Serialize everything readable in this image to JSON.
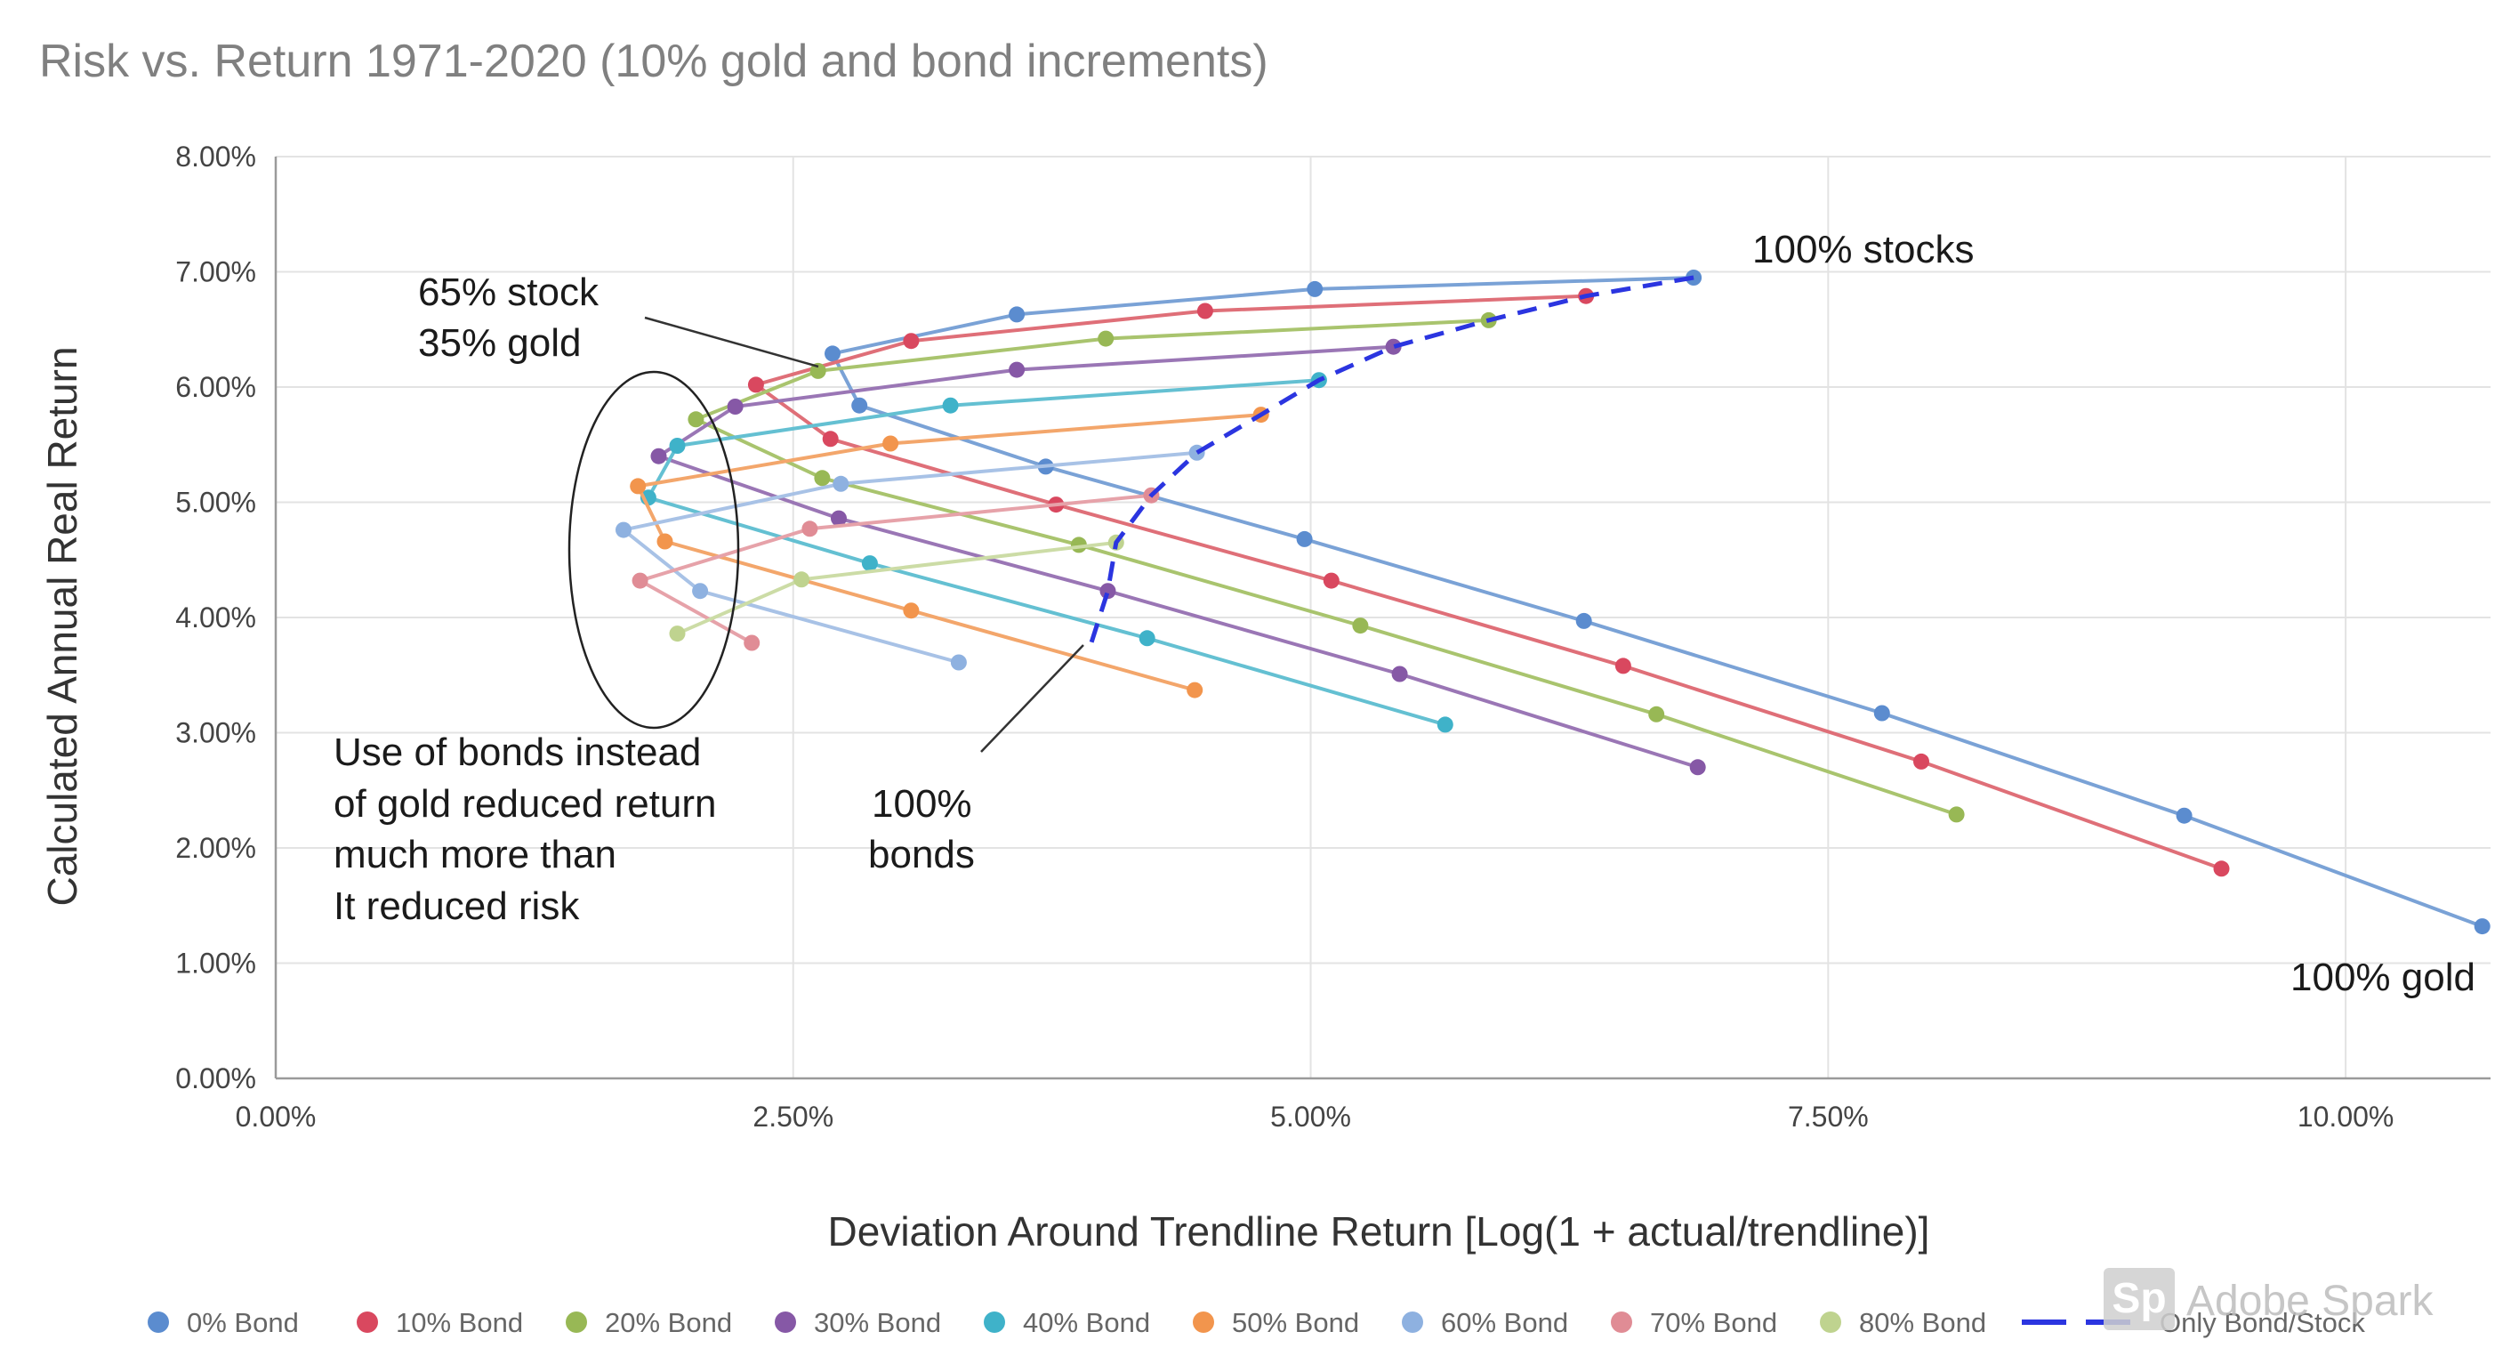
{
  "chart_data": {
    "type": "line",
    "title": "Risk vs. Return 1971-2020 (10% gold and bond increments)",
    "xlabel": "Deviation Around Trendline Return [Log(1 + actual/trendline)]",
    "ylabel": "Calculated Annual Real Return",
    "xlim": [
      0,
      10.7
    ],
    "ylim": [
      0,
      8
    ],
    "x_ticks": [
      "0.00%",
      "2.50%",
      "5.00%",
      "7.50%",
      "10.00%"
    ],
    "y_ticks": [
      "0.00%",
      "1.00%",
      "2.00%",
      "3.00%",
      "4.00%",
      "5.00%",
      "6.00%",
      "7.00%",
      "8.00%"
    ],
    "grid": true,
    "legend_position": "bottom",
    "series": [
      {
        "name": "0% Bond",
        "color": "#5b8ccf",
        "stroke": "#7aa2d6",
        "points": [
          [
            6.85,
            6.95
          ],
          [
            5.02,
            6.85
          ],
          [
            3.58,
            6.63
          ],
          [
            2.69,
            6.29
          ],
          [
            2.82,
            5.84
          ],
          [
            3.72,
            5.31
          ],
          [
            4.97,
            4.68
          ],
          [
            6.32,
            3.97
          ],
          [
            7.76,
            3.17
          ],
          [
            9.22,
            2.28
          ],
          [
            10.66,
            1.32
          ]
        ]
      },
      {
        "name": "10% Bond",
        "color": "#d9485f",
        "stroke": "#df6f78",
        "points": [
          [
            6.33,
            6.79
          ],
          [
            4.49,
            6.66
          ],
          [
            3.07,
            6.4
          ],
          [
            2.32,
            6.02
          ],
          [
            2.68,
            5.55
          ],
          [
            3.77,
            4.98
          ],
          [
            5.1,
            4.32
          ],
          [
            6.51,
            3.58
          ],
          [
            7.95,
            2.75
          ],
          [
            9.4,
            1.82
          ]
        ]
      },
      {
        "name": "20% Bond",
        "color": "#98b855",
        "stroke": "#a9c46e",
        "points": [
          [
            5.86,
            6.58
          ],
          [
            4.01,
            6.42
          ],
          [
            2.62,
            6.14
          ],
          [
            2.03,
            5.72
          ],
          [
            2.64,
            5.21
          ],
          [
            3.88,
            4.63
          ],
          [
            5.24,
            3.93
          ],
          [
            6.67,
            3.16
          ],
          [
            8.12,
            2.29
          ]
        ]
      },
      {
        "name": "30% Bond",
        "color": "#8658a6",
        "stroke": "#9a76b5",
        "points": [
          [
            5.4,
            6.35
          ],
          [
            3.58,
            6.15
          ],
          [
            2.22,
            5.83
          ],
          [
            1.85,
            5.4
          ],
          [
            2.72,
            4.86
          ],
          [
            4.02,
            4.23
          ],
          [
            5.43,
            3.51
          ],
          [
            6.87,
            2.7
          ]
        ]
      },
      {
        "name": "40% Bond",
        "color": "#3fb2c9",
        "stroke": "#64c0d2",
        "points": [
          [
            5.04,
            6.06
          ],
          [
            3.26,
            5.84
          ],
          [
            1.94,
            5.49
          ],
          [
            1.8,
            5.04
          ],
          [
            2.87,
            4.47
          ],
          [
            4.21,
            3.82
          ],
          [
            5.65,
            3.07
          ]
        ]
      },
      {
        "name": "50% Bond",
        "color": "#f2954d",
        "stroke": "#f3a66b",
        "points": [
          [
            4.76,
            5.76
          ],
          [
            2.97,
            5.51
          ],
          [
            1.75,
            5.14
          ],
          [
            1.88,
            4.66
          ],
          [
            3.07,
            4.06
          ],
          [
            4.44,
            3.37
          ]
        ]
      },
      {
        "name": "60% Bond",
        "color": "#8eb1e0",
        "stroke": "#a8c2e6",
        "points": [
          [
            4.45,
            5.43
          ],
          [
            2.73,
            5.16
          ],
          [
            1.68,
            4.76
          ],
          [
            2.05,
            4.23
          ],
          [
            3.3,
            3.61
          ]
        ]
      },
      {
        "name": "70% Bond",
        "color": "#e08c95",
        "stroke": "#e6a2a9",
        "points": [
          [
            4.23,
            5.06
          ],
          [
            2.58,
            4.77
          ],
          [
            1.76,
            4.32
          ],
          [
            2.3,
            3.78
          ]
        ]
      },
      {
        "name": "80% Bond",
        "color": "#bfd38f",
        "stroke": "#ccdca6",
        "points": [
          [
            4.06,
            4.65
          ],
          [
            2.54,
            4.33
          ],
          [
            1.94,
            3.86
          ]
        ]
      }
    ],
    "only_series": {
      "name": "Only Bond/Stock",
      "color": "#2b35e0",
      "style": "dashed",
      "points": [
        [
          6.85,
          6.95
        ],
        [
          6.33,
          6.79
        ],
        [
          5.86,
          6.58
        ],
        [
          5.4,
          6.35
        ],
        [
          5.04,
          6.06
        ],
        [
          4.76,
          5.76
        ],
        [
          4.45,
          5.43
        ],
        [
          4.23,
          5.06
        ],
        [
          4.06,
          4.65
        ],
        [
          4.02,
          4.23
        ],
        [
          3.94,
          3.78
        ]
      ]
    },
    "annotations": {
      "stock_gold_line1": "65% stock",
      "stock_gold_line2": "35% gold",
      "stocks": "100% stocks",
      "gold": "100% gold",
      "bonds_line1": "100%",
      "bonds_line2": "bonds",
      "note_line1": "Use of bonds instead",
      "note_line2": "of gold reduced return",
      "note_line3": "much more than",
      "note_line4": "It reduced risk"
    },
    "watermark": {
      "logo": "Sp",
      "text": "Adobe Spark"
    }
  }
}
